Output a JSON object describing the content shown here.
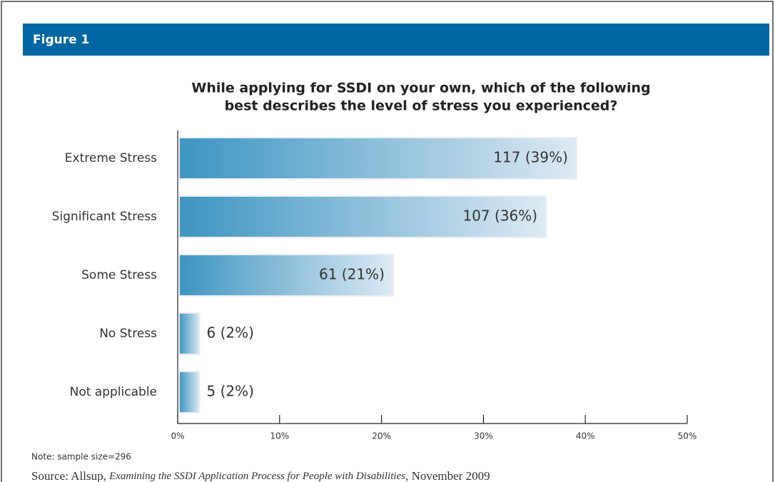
{
  "figure_label": "Figure 1",
  "chart_data": {
    "type": "bar",
    "orientation": "horizontal",
    "title": [
      "While applying for SSDI on your own, which of the following",
      "best describes the level of stress you experienced?"
    ],
    "categories": [
      "Extreme Stress",
      "Significant Stress",
      "Some Stress",
      "No Stress",
      "Not applicable"
    ],
    "values": [
      39,
      36,
      21,
      2,
      2
    ],
    "value_labels": [
      "117 (39%)",
      "107 (36%)",
      "61 (21%)",
      "6 (2%)",
      "5 (2%)"
    ],
    "color": [
      "#3d95c1",
      "#dde9f4"
    ],
    "xlim": [
      0,
      50
    ],
    "xticks": [
      {
        "value": 0,
        "label": "0%"
      },
      {
        "value": 10,
        "label": "10%"
      },
      {
        "value": 20,
        "label": "20%"
      },
      {
        "value": 30,
        "label": "30%"
      },
      {
        "value": 40,
        "label": "40%"
      },
      {
        "value": 50,
        "label": "50%"
      }
    ]
  },
  "note": "Note: sample size=296",
  "source": [
    "Source: Allsup, ",
    "Examining the SSDI Application Process for People with Disabilities",
    ", November 2009"
  ]
}
